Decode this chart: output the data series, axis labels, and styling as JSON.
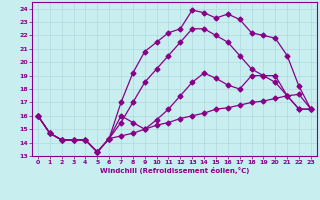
{
  "xlabel": "Windchill (Refroidissement éolien,°C)",
  "background_color": "#c8eef0",
  "line_color": "#880088",
  "grid_color": "#b0d8dc",
  "xlim": [
    -0.5,
    23.5
  ],
  "ylim": [
    13,
    24.5
  ],
  "xticks": [
    0,
    1,
    2,
    3,
    4,
    5,
    6,
    7,
    8,
    9,
    10,
    11,
    12,
    13,
    14,
    15,
    16,
    17,
    18,
    19,
    20,
    21,
    22,
    23
  ],
  "yticks": [
    13,
    14,
    15,
    16,
    17,
    18,
    19,
    20,
    21,
    22,
    23,
    24
  ],
  "lines": [
    {
      "x": [
        0,
        1,
        2,
        3,
        4,
        5,
        6,
        7,
        8,
        9,
        10,
        11,
        12,
        13,
        14,
        15,
        16,
        17,
        18,
        19,
        20,
        21,
        22,
        23
      ],
      "y": [
        16.0,
        14.7,
        14.2,
        14.2,
        14.2,
        13.3,
        14.3,
        14.5,
        14.7,
        15.0,
        15.3,
        15.5,
        15.8,
        16.0,
        16.2,
        16.5,
        16.6,
        16.8,
        17.0,
        17.1,
        17.3,
        17.5,
        17.6,
        16.5
      ]
    },
    {
      "x": [
        0,
        1,
        2,
        3,
        4,
        5,
        6,
        7,
        8,
        9,
        10,
        11,
        12,
        13,
        14,
        15,
        16,
        17,
        18,
        19,
        20,
        21,
        22,
        23
      ],
      "y": [
        16.0,
        14.7,
        14.2,
        14.2,
        14.2,
        13.3,
        14.3,
        16.0,
        15.5,
        15.0,
        15.7,
        16.5,
        17.5,
        18.5,
        19.2,
        18.8,
        18.3,
        18.0,
        19.0,
        19.0,
        18.5,
        17.5,
        16.5,
        16.5
      ]
    },
    {
      "x": [
        0,
        1,
        2,
        3,
        4,
        5,
        6,
        7,
        8,
        9,
        10,
        11,
        12,
        13,
        14,
        15,
        16,
        17,
        18,
        19,
        20,
        21,
        22,
        23
      ],
      "y": [
        16.0,
        14.7,
        14.2,
        14.2,
        14.2,
        13.3,
        14.3,
        15.5,
        17.0,
        18.5,
        19.5,
        20.5,
        21.5,
        22.5,
        22.5,
        22.0,
        21.5,
        20.5,
        19.5,
        19.0,
        19.0,
        17.5,
        16.5,
        16.5
      ]
    },
    {
      "x": [
        0,
        1,
        2,
        3,
        4,
        5,
        6,
        7,
        8,
        9,
        10,
        11,
        12,
        13,
        14,
        15,
        16,
        17,
        18,
        19,
        20,
        21,
        22,
        23
      ],
      "y": [
        16.0,
        14.7,
        14.2,
        14.2,
        14.2,
        13.3,
        14.3,
        17.0,
        19.2,
        20.8,
        21.5,
        22.2,
        22.5,
        23.9,
        23.7,
        23.3,
        23.6,
        23.2,
        22.2,
        22.0,
        21.8,
        20.5,
        18.2,
        16.5
      ]
    }
  ],
  "marker": "D",
  "markersize": 2.5,
  "linewidth": 0.9
}
